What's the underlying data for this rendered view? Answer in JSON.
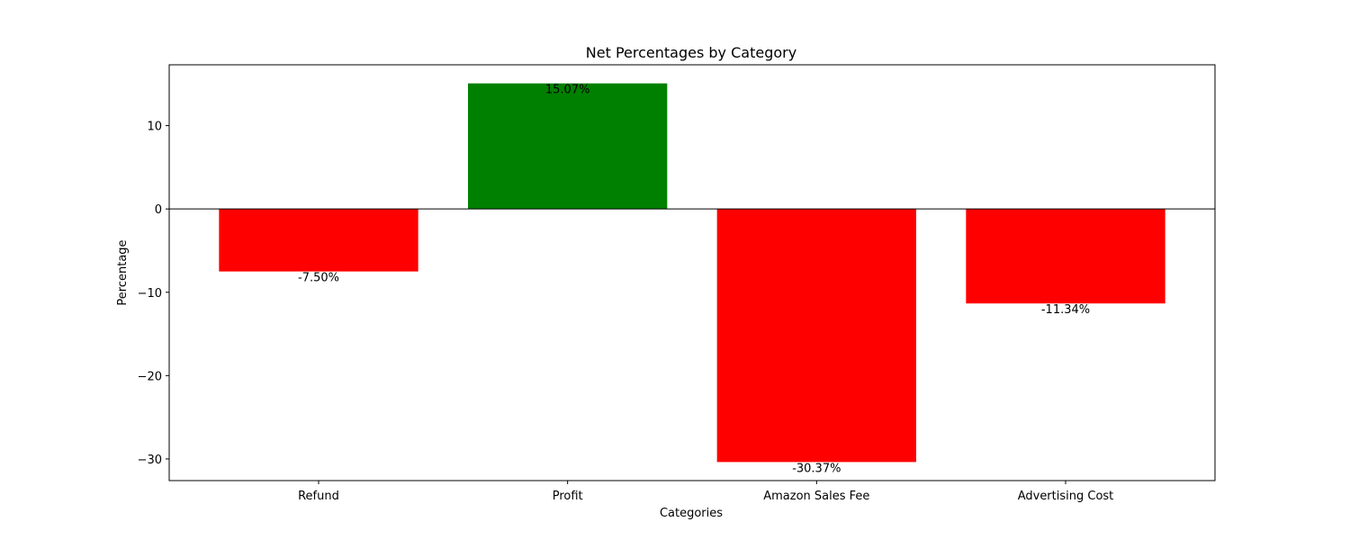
{
  "chart_data": {
    "type": "bar",
    "title": "Net Percentages by Category",
    "xlabel": "Categories",
    "ylabel": "Percentage",
    "categories": [
      "Refund",
      "Profit",
      "Amazon Sales Fee",
      "Advertising Cost"
    ],
    "values": [
      -7.5,
      15.07,
      -30.37,
      -11.34
    ],
    "value_labels": [
      "-7.50%",
      "15.07%",
      "-30.37%",
      "-11.34%"
    ],
    "bar_colors": [
      "#ff0000",
      "#008000",
      "#ff0000",
      "#ff0000"
    ],
    "ylim": [
      -32.6,
      17.3
    ],
    "yticks": [
      -30,
      -20,
      -10,
      0,
      10
    ],
    "ytick_labels": [
      "−30",
      "−20",
      "−10",
      "0",
      "10"
    ],
    "zero_line": true,
    "grid": false,
    "legend": false
  }
}
